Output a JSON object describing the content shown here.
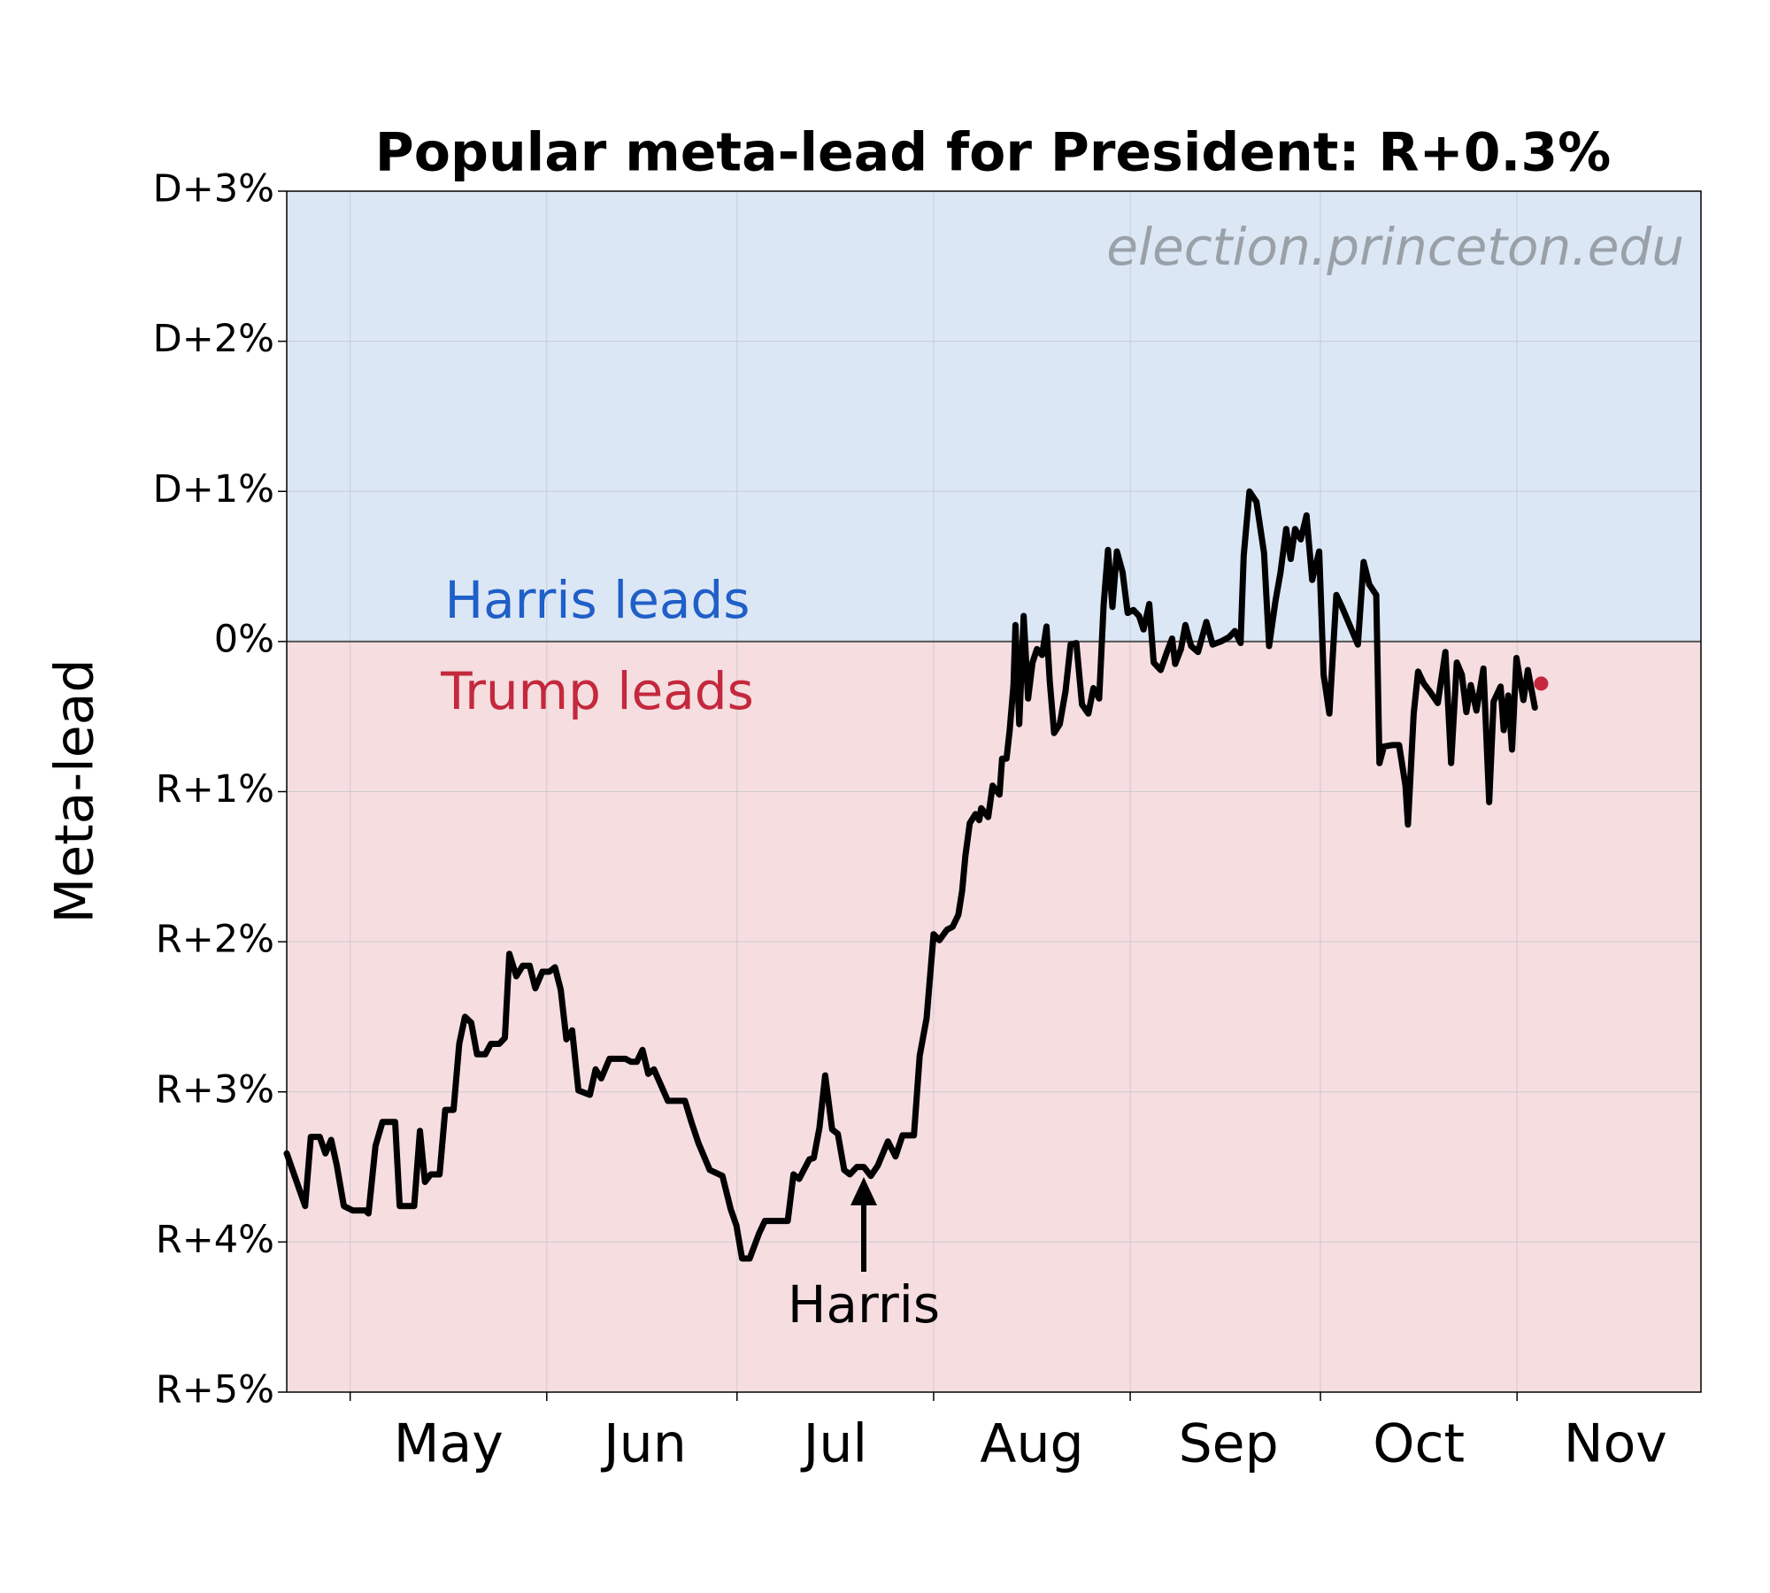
{
  "chart_data": {
    "type": "line",
    "title": "Popular meta-lead for President: R+0.3%",
    "watermark": "election.princeton.edu",
    "ylabel": "Meta-lead",
    "annotations": {
      "upper": "Harris leads",
      "lower": "Trump leads",
      "event": "Harris"
    },
    "annotation_colors": {
      "upper": "#1f5fc8",
      "lower": "#c4283c",
      "event": "#000000"
    },
    "shading": {
      "above": "#dce7f5",
      "below": "#f5dde0"
    },
    "baseline": 0,
    "grid": true,
    "color": "#000000",
    "xlim": [
      112,
      335
    ],
    "xticks": [
      {
        "value": 122,
        "label": "May"
      },
      {
        "value": 153,
        "label": "Jun"
      },
      {
        "value": 183,
        "label": "Jul"
      },
      {
        "value": 214,
        "label": "Aug"
      },
      {
        "value": 245,
        "label": "Sep"
      },
      {
        "value": 275,
        "label": "Oct"
      },
      {
        "value": 306,
        "label": "Nov"
      }
    ],
    "ylim": [
      -5,
      3
    ],
    "yticks": [
      {
        "value": 3,
        "label": "D+3%"
      },
      {
        "value": 2,
        "label": "D+2%"
      },
      {
        "value": 1,
        "label": "D+1%"
      },
      {
        "value": 0,
        "label": "0%"
      },
      {
        "value": -1,
        "label": "R+1%"
      },
      {
        "value": -2,
        "label": "R+2%"
      },
      {
        "value": -3,
        "label": "R+3%"
      },
      {
        "value": -4,
        "label": "R+4%"
      },
      {
        "value": -5,
        "label": "R+5%"
      }
    ],
    "x": [
      112.0,
      114.9,
      115.8,
      117.2,
      118.1,
      119.0,
      119.9,
      121.0,
      122.4,
      124.4,
      124.9,
      126.0,
      127.1,
      129.1,
      129.8,
      132.1,
      133.0,
      133.8,
      134.7,
      136.1,
      137.0,
      138.3,
      139.2,
      140.1,
      141.1,
      142.0,
      143.3,
      144.2,
      145.5,
      146.4,
      147.1,
      148.2,
      149.2,
      150.3,
      151.2,
      152.3,
      153.4,
      154.3,
      155.2,
      156.1,
      157.0,
      158.0,
      159.8,
      160.7,
      161.6,
      162.9,
      165.4,
      166.3,
      167.2,
      168.1,
      169.0,
      169.9,
      172.1,
      174.8,
      175.8,
      176.9,
      178.7,
      180.7,
      182.0,
      182.9,
      183.8,
      185.0,
      186.5,
      187.4,
      191.0,
      191.9,
      192.8,
      194.4,
      195.1,
      196.0,
      196.9,
      198.0,
      198.9,
      199.9,
      200.8,
      201.9,
      203.0,
      204.1,
      205.2,
      206.8,
      208.0,
      209.1,
      210.9,
      211.8,
      212.9,
      214.0,
      214.9,
      216.1,
      217.0,
      217.9,
      218.5,
      219.0,
      219.7,
      220.6,
      221.2,
      221.5,
      222.6,
      223.3,
      224.4,
      224.8,
      225.5,
      226.0,
      226.6,
      226.9,
      227.5,
      228.2,
      228.9,
      229.6,
      230.3,
      231.1,
      231.8,
      232.3,
      233.0,
      233.9,
      234.8,
      235.6,
      236.5,
      237.4,
      238.4,
      239.2,
      240.1,
      240.8,
      241.5,
      242.2,
      242.9,
      243.8,
      244.6,
      245.5,
      246.4,
      247.1,
      248.0,
      248.7,
      249.8,
      250.8,
      251.6,
      252.1,
      253.0,
      253.7,
      254.6,
      255.7,
      257.0,
      258.0,
      259.3,
      260.6,
      261.5,
      262.4,
      262.9,
      263.8,
      264.9,
      266.1,
      266.9,
      267.9,
      268.7,
      269.6,
      270.3,
      271.0,
      271.9,
      272.8,
      273.7,
      274.8,
      275.5,
      276.4,
      277.5,
      278.4,
      280.9,
      281.8,
      282.7,
      283.8,
      284.3,
      285.0,
      286.3,
      287.4,
      288.4,
      288.8,
      289.7,
      290.4,
      291.3,
      292.2,
      293.5,
      294.7,
      295.6,
      296.5,
      297.3,
      298.0,
      298.7,
      299.6,
      300.7,
      301.6,
      302.3,
      303.4,
      303.9,
      304.6,
      305.2,
      305.9,
      307.0,
      307.7,
      308.8
    ],
    "values": [
      -3.41,
      -3.76,
      -3.3,
      -3.3,
      -3.41,
      -3.32,
      -3.49,
      -3.76,
      -3.79,
      -3.79,
      -3.81,
      -3.36,
      -3.2,
      -3.2,
      -3.76,
      -3.76,
      -3.26,
      -3.6,
      -3.55,
      -3.55,
      -3.12,
      -3.12,
      -2.68,
      -2.5,
      -2.54,
      -2.75,
      -2.75,
      -2.68,
      -2.68,
      -2.64,
      -2.08,
      -2.23,
      -2.16,
      -2.16,
      -2.31,
      -2.2,
      -2.2,
      -2.17,
      -2.32,
      -2.65,
      -2.59,
      -2.99,
      -3.02,
      -2.85,
      -2.91,
      -2.78,
      -2.78,
      -2.8,
      -2.8,
      -2.72,
      -2.88,
      -2.85,
      -3.06,
      -3.06,
      -3.2,
      -3.34,
      -3.52,
      -3.56,
      -3.78,
      -3.89,
      -4.11,
      -4.11,
      -3.94,
      -3.86,
      -3.86,
      -3.55,
      -3.58,
      -3.45,
      -3.44,
      -3.24,
      -2.89,
      -3.25,
      -3.28,
      -3.52,
      -3.55,
      -3.5,
      -3.5,
      -3.56,
      -3.49,
      -3.33,
      -3.43,
      -3.29,
      -3.29,
      -2.76,
      -2.51,
      -1.95,
      -1.99,
      -1.92,
      -1.9,
      -1.82,
      -1.66,
      -1.43,
      -1.21,
      -1.15,
      -1.19,
      -1.11,
      -1.17,
      -0.96,
      -1.02,
      -0.78,
      -0.78,
      -0.59,
      -0.29,
      0.11,
      -0.55,
      0.17,
      -0.38,
      -0.14,
      -0.05,
      -0.09,
      0.1,
      -0.26,
      -0.61,
      -0.55,
      -0.33,
      -0.02,
      -0.01,
      -0.42,
      -0.48,
      -0.31,
      -0.38,
      0.24,
      0.61,
      0.23,
      0.6,
      0.46,
      0.19,
      0.21,
      0.17,
      0.08,
      0.25,
      -0.14,
      -0.19,
      -0.07,
      0.02,
      -0.15,
      -0.05,
      0.11,
      -0.03,
      -0.07,
      0.13,
      -0.02,
      0.0,
      0.03,
      0.07,
      -0.01,
      0.57,
      1.0,
      0.93,
      0.59,
      -0.03,
      0.27,
      0.46,
      0.75,
      0.55,
      0.75,
      0.68,
      0.84,
      0.41,
      0.6,
      -0.22,
      -0.48,
      0.31,
      0.23,
      -0.02,
      0.53,
      0.38,
      0.31,
      -0.81,
      -0.7,
      -0.69,
      -0.69,
      -0.96,
      -1.22,
      -0.48,
      -0.2,
      -0.28,
      -0.33,
      -0.41,
      -0.07,
      -0.81,
      -0.14,
      -0.22,
      -0.47,
      -0.29,
      -0.46,
      -0.18,
      -1.07,
      -0.4,
      -0.3,
      -0.59,
      -0.36,
      -0.72,
      -0.11,
      -0.39,
      -0.19,
      -0.44
    ],
    "latest": {
      "x": 309.8,
      "value": -0.28,
      "color": "#c4283c"
    }
  }
}
